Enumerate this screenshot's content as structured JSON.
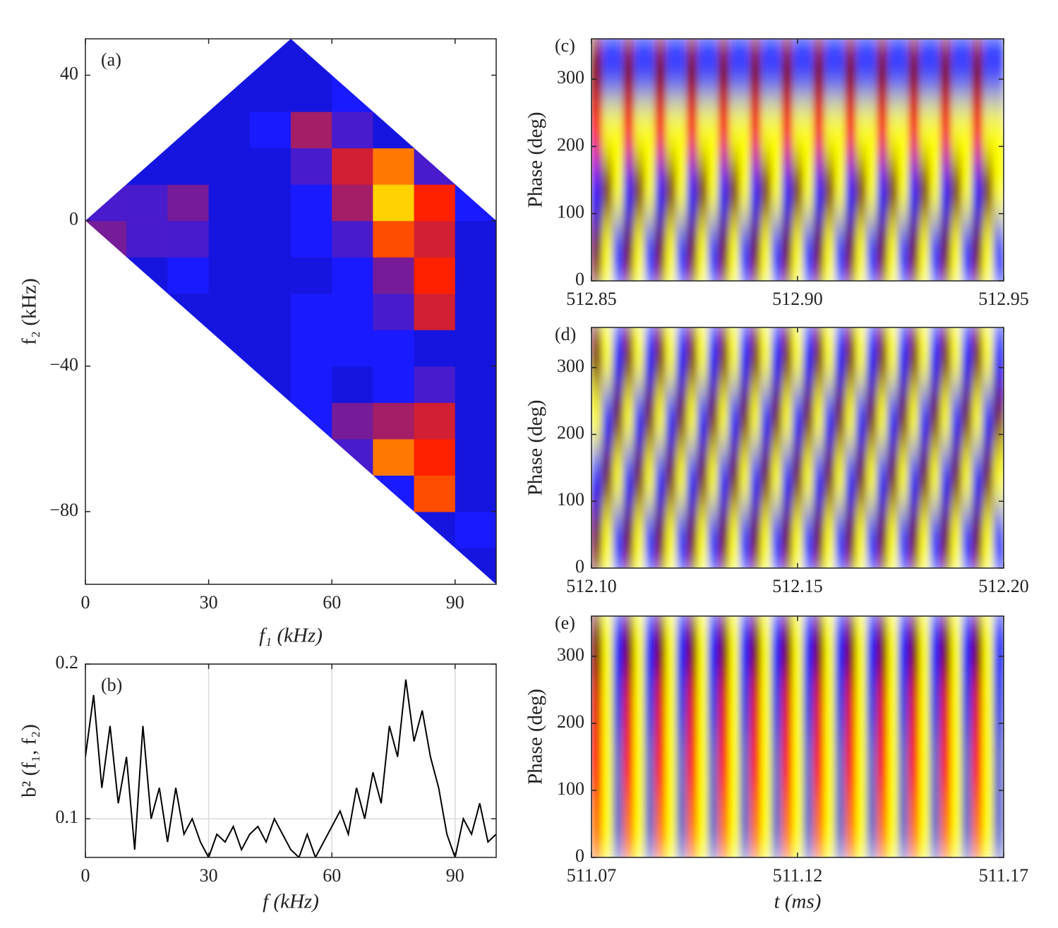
{
  "chart_data": [
    {
      "type": "heatmap",
      "label": "(a)",
      "xlabel": "f₁ (kHz)",
      "ylabel": "f₂ (kHz)",
      "xlim": [
        0,
        100
      ],
      "ylim": [
        -100,
        50
      ],
      "xticks": [
        0,
        30,
        60,
        90
      ],
      "yticks": [
        {
          "value": -80,
          "label": "−80"
        },
        {
          "value": -40,
          "label": "−40"
        },
        0,
        40
      ],
      "xbins": [
        0,
        10,
        20,
        30,
        40,
        50,
        60,
        70,
        80,
        90,
        100
      ],
      "ybins": [
        -100,
        -90,
        -80,
        -70,
        -60,
        -50,
        -40,
        -30,
        -20,
        -10,
        0,
        10,
        20,
        30,
        40,
        50
      ],
      "zlim": [
        0,
        1
      ],
      "colors": [
        "#000060",
        "#1a1aff",
        "#ff2000",
        "#ffff00",
        "#ffffff"
      ],
      "z": [
        [
          null,
          null,
          null,
          null,
          null,
          null,
          null,
          null,
          null,
          0.2
        ],
        [
          null,
          null,
          null,
          null,
          null,
          null,
          null,
          null,
          0.2,
          0.25
        ],
        [
          null,
          null,
          null,
          null,
          null,
          null,
          null,
          0.25,
          0.55,
          0.2
        ],
        [
          null,
          null,
          null,
          null,
          null,
          null,
          0.3,
          0.6,
          0.5,
          0.2
        ],
        [
          null,
          null,
          null,
          null,
          null,
          0.25,
          0.35,
          0.4,
          0.45,
          0.2
        ],
        [
          null,
          null,
          null,
          null,
          0.2,
          0.25,
          0.2,
          0.25,
          0.3,
          0.2
        ],
        [
          null,
          null,
          null,
          0.2,
          0.2,
          0.25,
          0.25,
          0.25,
          0.2,
          0.2
        ],
        [
          null,
          null,
          0.2,
          0.2,
          0.2,
          0.25,
          0.25,
          0.3,
          0.45,
          0.2
        ],
        [
          null,
          0.2,
          0.25,
          0.2,
          0.2,
          0.2,
          0.25,
          0.35,
          0.5,
          0.2
        ],
        [
          0.35,
          0.3,
          0.3,
          0.2,
          0.2,
          0.25,
          0.3,
          0.55,
          0.45,
          0.2
        ],
        [
          0.3,
          0.3,
          0.35,
          0.2,
          0.2,
          0.25,
          0.4,
          0.7,
          0.5,
          0.25
        ],
        [
          null,
          0.2,
          0.2,
          0.2,
          0.2,
          0.3,
          0.45,
          0.6,
          0.3,
          null
        ],
        [
          null,
          null,
          0.2,
          0.2,
          0.25,
          0.4,
          0.3,
          0.2,
          null,
          null
        ],
        [
          null,
          null,
          null,
          0.2,
          0.2,
          0.2,
          0.25,
          null,
          null,
          null
        ],
        [
          null,
          null,
          null,
          null,
          0.2,
          0.2,
          null,
          null,
          null,
          null
        ]
      ]
    },
    {
      "type": "line",
      "label": "(b)",
      "xlabel": "f (kHz)",
      "ylabel": "b² (f₁, f₂)",
      "xlim": [
        0,
        100
      ],
      "ylim": [
        0.075,
        0.2
      ],
      "xticks": [
        0,
        30,
        60,
        90
      ],
      "yticks": [
        0.1,
        0.2
      ],
      "grid": true,
      "color": "#000000",
      "x": [
        0,
        2,
        4,
        6,
        8,
        10,
        12,
        14,
        16,
        18,
        20,
        22,
        24,
        26,
        28,
        30,
        32,
        34,
        36,
        38,
        40,
        42,
        44,
        46,
        48,
        50,
        52,
        54,
        56,
        58,
        60,
        62,
        64,
        66,
        68,
        70,
        72,
        74,
        76,
        78,
        80,
        82,
        84,
        86,
        88,
        90,
        92,
        94,
        96,
        98,
        100
      ],
      "values": [
        0.14,
        0.18,
        0.12,
        0.16,
        0.11,
        0.14,
        0.08,
        0.16,
        0.1,
        0.12,
        0.085,
        0.12,
        0.09,
        0.1,
        0.085,
        0.075,
        0.09,
        0.085,
        0.095,
        0.08,
        0.09,
        0.095,
        0.085,
        0.1,
        0.09,
        0.08,
        0.075,
        0.09,
        0.075,
        0.085,
        0.095,
        0.105,
        0.09,
        0.12,
        0.1,
        0.13,
        0.11,
        0.16,
        0.14,
        0.19,
        0.15,
        0.17,
        0.14,
        0.12,
        0.09,
        0.075,
        0.1,
        0.09,
        0.11,
        0.085,
        0.09
      ]
    },
    {
      "type": "heatmap",
      "label": "(c)",
      "ylabel": "Phase (deg)",
      "interpolate": true,
      "xlim": [
        512.85,
        512.95
      ],
      "ylim": [
        0,
        360
      ],
      "xticks": [
        512.85,
        {
          "value": 512.9,
          "label": "512.90"
        },
        512.95
      ],
      "yticks": [
        0,
        100,
        200,
        300
      ],
      "zlim": [
        -1,
        1
      ],
      "colors": [
        "#0010ff",
        "#8080c0",
        "#ffff00",
        "#ff1000",
        "#700000"
      ],
      "z": [
        [
          1,
          0,
          -1,
          1,
          0,
          -1,
          1,
          0,
          -1,
          1,
          0,
          -1,
          1,
          0,
          -1,
          1,
          0,
          -1,
          1,
          0,
          -1,
          1,
          0,
          -1,
          1,
          0,
          -1,
          1,
          0,
          -1,
          1,
          0,
          -1,
          1,
          0,
          -1,
          1,
          0,
          -1
        ],
        [
          -1,
          1,
          0,
          -1,
          1,
          0,
          -1,
          1,
          0,
          -1,
          1,
          0,
          -1,
          1,
          0,
          -1,
          1,
          0,
          -1,
          1,
          0,
          -1,
          1,
          0,
          -1,
          1,
          0,
          -1,
          1,
          0,
          -1,
          1,
          0,
          -1,
          1,
          0,
          -1,
          1,
          0
        ],
        [
          0.5,
          0,
          0,
          0.5,
          0,
          0,
          0.5,
          0,
          0,
          0.5,
          0,
          0,
          0.5,
          0,
          0,
          0.5,
          0,
          0,
          0.5,
          0,
          0,
          0.5,
          0,
          0,
          0.5,
          0,
          0,
          0.5,
          0,
          0,
          0.5,
          0,
          0,
          0.5,
          0,
          0,
          0.5,
          0,
          0
        ],
        [
          1,
          -1,
          -1,
          1,
          -1,
          -1,
          1,
          -1,
          -1,
          1,
          -1,
          -1,
          1,
          -1,
          -1,
          1,
          -1,
          -1,
          1,
          -1,
          -1,
          1,
          -1,
          -1,
          1,
          -1,
          -1,
          1,
          -1,
          -1,
          1,
          -1,
          -1,
          1,
          -1,
          -1,
          1,
          -1,
          -1
        ]
      ]
    },
    {
      "type": "heatmap",
      "label": "(d)",
      "ylabel": "Phase (deg)",
      "interpolate": true,
      "xlim": [
        512.1,
        512.2
      ],
      "ylim": [
        0,
        360
      ],
      "xticks": [
        {
          "value": 512.1,
          "label": "512.10"
        },
        512.15,
        {
          "value": 512.2,
          "label": "512.20"
        }
      ],
      "yticks": [
        0,
        100,
        200,
        300
      ],
      "zlim": [
        -1,
        1
      ],
      "colors": [
        "#0010ff",
        "#8080c0",
        "#ffff00",
        "#ff1000",
        "#700000"
      ],
      "z": [
        [
          1,
          0,
          -1,
          1,
          0,
          -1,
          1,
          0,
          -1,
          1,
          0,
          -1,
          1,
          0,
          -1,
          1,
          0,
          -1,
          1,
          0,
          -1,
          1,
          0,
          -1,
          1,
          0,
          -1,
          1,
          0,
          -1,
          1,
          0,
          -1,
          1,
          0,
          -1,
          1,
          0,
          -1
        ],
        [
          -1,
          1,
          0,
          -1,
          1,
          0,
          -1,
          1,
          0,
          -1,
          1,
          0,
          -1,
          1,
          0,
          -1,
          1,
          0,
          -1,
          1,
          0,
          -1,
          1,
          0,
          -1,
          1,
          0,
          -1,
          1,
          0,
          -1,
          1,
          0,
          -1,
          1,
          0,
          -1,
          1,
          0
        ],
        [
          0,
          -1,
          1,
          0,
          -1,
          1,
          0,
          -1,
          1,
          0,
          -1,
          1,
          0,
          -1,
          1,
          0,
          -1,
          1,
          0,
          -1,
          1,
          0,
          -1,
          1,
          0,
          -1,
          1,
          0,
          -1,
          1,
          0,
          -1,
          1,
          0,
          -1,
          1,
          0,
          -1,
          1
        ],
        [
          1,
          0,
          -1,
          1,
          0,
          -1,
          1,
          0,
          -1,
          1,
          0,
          -1,
          1,
          0,
          -1,
          1,
          0,
          -1,
          1,
          0,
          -1,
          1,
          0,
          -1,
          1,
          0,
          -1,
          1,
          0,
          -1,
          1,
          0,
          -1,
          1,
          0,
          -1,
          1,
          0,
          -1
        ]
      ]
    },
    {
      "type": "heatmap",
      "label": "(e)",
      "xlabel": "t (ms)",
      "ylabel": "Phase (deg)",
      "interpolate": true,
      "xlim": [
        511.07,
        511.17
      ],
      "ylim": [
        0,
        360
      ],
      "xticks": [
        511.07,
        511.12,
        511.17
      ],
      "yticks": [
        0,
        100,
        200,
        300
      ],
      "zlim": [
        -1,
        1
      ],
      "colors": [
        "#0010ff",
        "#8080c0",
        "#ffff00",
        "#ff1000",
        "#700000"
      ],
      "z": [
        [
          0.3,
          0,
          -0.6,
          0.3,
          0,
          -0.6,
          0.3,
          0,
          -0.6,
          0.3,
          0,
          -0.6,
          0.3,
          0,
          -0.6,
          0.3,
          0,
          -0.6,
          0.3,
          0,
          -0.6,
          0.3,
          0,
          -0.6,
          0.3,
          0,
          -0.6,
          0.3,
          0,
          -0.6,
          0.3,
          0,
          -0.6,
          0.3,
          0,
          -0.6,
          0.3,
          0,
          -0.6
        ],
        [
          0.5,
          0,
          -0.6,
          0.5,
          0,
          -0.6,
          0.5,
          0,
          -0.6,
          0.5,
          0,
          -0.6,
          0.5,
          0,
          -0.6,
          0.5,
          0,
          -0.6,
          0.5,
          0,
          -0.6,
          0.5,
          0,
          -0.6,
          0.5,
          0,
          -0.6,
          0.5,
          0,
          -0.6,
          0.5,
          0,
          -0.6,
          0.5,
          0,
          -0.6,
          0.5,
          0,
          -0.6
        ],
        [
          0.6,
          0,
          -0.8,
          0.6,
          0,
          -0.8,
          0.6,
          0,
          -0.8,
          0.6,
          0,
          -0.8,
          0.6,
          0,
          -0.8,
          0.6,
          0,
          -0.8,
          0.6,
          0,
          -0.8,
          0.6,
          0,
          -0.8,
          0.6,
          0,
          -0.8,
          0.6,
          0,
          -0.8,
          0.6,
          0,
          -0.8,
          0.6,
          0,
          -0.8,
          0.6,
          0,
          -0.8
        ],
        [
          1,
          0,
          -1,
          1,
          0,
          -1,
          1,
          0,
          -1,
          1,
          0,
          -1,
          1,
          0,
          -1,
          1,
          0,
          -1,
          1,
          0,
          -1,
          1,
          0,
          -1,
          1,
          0,
          -1,
          1,
          0,
          -1,
          1,
          0,
          -1,
          1,
          0,
          -1,
          1,
          0,
          -1
        ]
      ]
    }
  ]
}
